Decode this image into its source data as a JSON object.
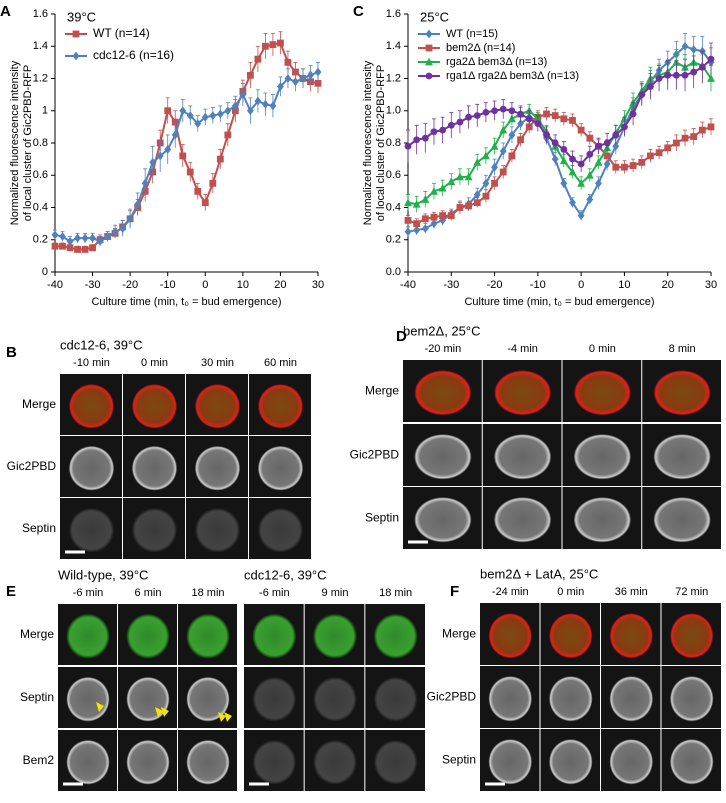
{
  "chart_data": [
    {
      "type": "line",
      "panel_label": "A",
      "annotation": "39°C",
      "ylabel_lines": [
        "Normalized fluorescence intensity",
        "of local cluster of Gic2PBD-RFP"
      ],
      "xlabel": "Culture time (min, t₀ = bud emergence)",
      "x": [
        -40,
        -38,
        -36,
        -34,
        -32,
        -30,
        -28,
        -26,
        -24,
        -22,
        -20,
        -18,
        -16,
        -14,
        -12,
        -10,
        -8,
        -6,
        -4,
        -2,
        0,
        2,
        4,
        6,
        8,
        10,
        12,
        14,
        16,
        18,
        20,
        22,
        24,
        26,
        28,
        30
      ],
      "xlim": [
        -40,
        30
      ],
      "xticks": [
        -40,
        -30,
        -20,
        -10,
        0,
        10,
        20,
        30
      ],
      "ylim": [
        0,
        1.6
      ],
      "yticks": [
        0,
        0.2,
        0.4,
        0.6,
        0.8,
        1,
        1.2,
        1.4,
        1.6
      ],
      "legend": "upper left",
      "series": [
        {
          "name": "WT (n=14)",
          "color": "#c0504d",
          "marker": "square",
          "values": [
            0.16,
            0.16,
            0.15,
            0.14,
            0.14,
            0.15,
            0.2,
            0.22,
            0.24,
            0.28,
            0.33,
            0.4,
            0.5,
            0.62,
            0.8,
            1.0,
            0.93,
            0.72,
            0.62,
            0.5,
            0.43,
            0.55,
            0.7,
            0.85,
            1.0,
            1.12,
            1.22,
            1.32,
            1.4,
            1.41,
            1.42,
            1.3,
            1.24,
            1.2,
            1.18,
            1.17
          ],
          "errors": [
            0.02,
            0.02,
            0.02,
            0.02,
            0.02,
            0.02,
            0.03,
            0.03,
            0.03,
            0.04,
            0.05,
            0.05,
            0.06,
            0.07,
            0.08,
            0.08,
            0.07,
            0.07,
            0.06,
            0.05,
            0.05,
            0.06,
            0.06,
            0.07,
            0.07,
            0.07,
            0.08,
            0.08,
            0.08,
            0.07,
            0.07,
            0.07,
            0.06,
            0.06,
            0.06,
            0.06
          ]
        },
        {
          "name": "cdc12-6 (n=16)",
          "color": "#4f81bd",
          "marker": "diamond",
          "values": [
            0.23,
            0.22,
            0.19,
            0.21,
            0.21,
            0.21,
            0.19,
            0.22,
            0.25,
            0.27,
            0.33,
            0.42,
            0.55,
            0.68,
            0.72,
            0.76,
            0.85,
            1.0,
            0.97,
            0.92,
            0.96,
            0.97,
            0.98,
            1.0,
            1.03,
            1.1,
            1.0,
            1.06,
            1.04,
            1.03,
            1.15,
            1.2,
            1.18,
            1.2,
            1.22,
            1.24
          ],
          "errors": [
            0.03,
            0.03,
            0.03,
            0.03,
            0.03,
            0.03,
            0.03,
            0.03,
            0.04,
            0.05,
            0.06,
            0.07,
            0.09,
            0.1,
            0.1,
            0.09,
            0.08,
            0.07,
            0.06,
            0.05,
            0.05,
            0.05,
            0.05,
            0.05,
            0.06,
            0.07,
            0.08,
            0.07,
            0.07,
            0.07,
            0.06,
            0.06,
            0.06,
            0.06,
            0.06,
            0.06
          ]
        }
      ]
    },
    {
      "type": "line",
      "panel_label": "C",
      "annotation": "25°C",
      "ylabel_lines": [
        "Normalized fluorescence intensity",
        "of local cluster of Gic2PBD-RFP"
      ],
      "xlabel": "Culture time (min, t₀ = bud emergence)",
      "x": [
        -40,
        -38,
        -36,
        -34,
        -32,
        -30,
        -28,
        -26,
        -24,
        -22,
        -20,
        -18,
        -16,
        -14,
        -12,
        -10,
        -8,
        -6,
        -4,
        -2,
        0,
        2,
        4,
        6,
        8,
        10,
        12,
        14,
        16,
        18,
        20,
        22,
        24,
        26,
        28,
        30
      ],
      "xlim": [
        -40,
        30
      ],
      "xticks": [
        -40,
        -30,
        -20,
        -10,
        0,
        10,
        20,
        30
      ],
      "ylim": [
        0,
        1.6
      ],
      "yticks": [
        {
          "value": 0,
          "label": "0.0"
        },
        0.2,
        0.4,
        0.6,
        0.8,
        {
          "value": 1,
          "label": "1.0"
        },
        1.2,
        1.4,
        1.6
      ],
      "legend": "upper left",
      "series": [
        {
          "name": "WT (n=15)",
          "color": "#4f81bd",
          "marker": "diamond",
          "values": [
            0.25,
            0.26,
            0.27,
            0.3,
            0.32,
            0.36,
            0.4,
            0.42,
            0.48,
            0.55,
            0.65,
            0.75,
            0.85,
            0.92,
            0.96,
            0.94,
            0.83,
            0.7,
            0.55,
            0.43,
            0.35,
            0.45,
            0.55,
            0.67,
            0.78,
            0.9,
            1.02,
            1.1,
            1.18,
            1.25,
            1.3,
            1.35,
            1.4,
            1.38,
            1.37,
            1.3
          ],
          "errors": [
            0.03,
            0.03,
            0.03,
            0.03,
            0.03,
            0.03,
            0.04,
            0.04,
            0.04,
            0.05,
            0.05,
            0.05,
            0.05,
            0.04,
            0.04,
            0.04,
            0.04,
            0.04,
            0.03,
            0.03,
            0.03,
            0.03,
            0.04,
            0.04,
            0.05,
            0.05,
            0.06,
            0.06,
            0.07,
            0.07,
            0.07,
            0.08,
            0.08,
            0.08,
            0.09,
            0.09
          ]
        },
        {
          "name": "bem2Δ (n=14)",
          "color": "#c0504d",
          "marker": "square",
          "values": [
            0.32,
            0.3,
            0.33,
            0.34,
            0.35,
            0.35,
            0.4,
            0.41,
            0.43,
            0.47,
            0.55,
            0.62,
            0.72,
            0.82,
            0.9,
            0.96,
            0.98,
            0.97,
            0.95,
            0.94,
            0.88,
            0.83,
            0.78,
            0.72,
            0.65,
            0.65,
            0.66,
            0.68,
            0.72,
            0.74,
            0.77,
            0.8,
            0.83,
            0.84,
            0.88,
            0.9
          ],
          "errors": [
            0.03,
            0.03,
            0.03,
            0.03,
            0.03,
            0.03,
            0.03,
            0.03,
            0.03,
            0.04,
            0.04,
            0.04,
            0.04,
            0.04,
            0.04,
            0.04,
            0.04,
            0.04,
            0.04,
            0.04,
            0.04,
            0.04,
            0.04,
            0.04,
            0.04,
            0.04,
            0.04,
            0.04,
            0.04,
            0.04,
            0.04,
            0.05,
            0.05,
            0.05,
            0.05,
            0.05
          ]
        },
        {
          "name": "rga2Δ bem3Δ (n=13)",
          "color": "#1fb14a",
          "marker": "triangle",
          "values": [
            0.43,
            0.42,
            0.45,
            0.5,
            0.52,
            0.56,
            0.59,
            0.59,
            0.68,
            0.72,
            0.78,
            0.88,
            0.95,
            0.98,
            1.0,
            0.95,
            0.87,
            0.78,
            0.69,
            0.62,
            0.55,
            0.6,
            0.68,
            0.77,
            0.86,
            0.95,
            1.05,
            1.12,
            1.2,
            1.22,
            1.24,
            1.3,
            1.27,
            1.3,
            1.28,
            1.2
          ],
          "errors": [
            0.05,
            0.05,
            0.05,
            0.05,
            0.05,
            0.05,
            0.05,
            0.05,
            0.05,
            0.05,
            0.05,
            0.05,
            0.04,
            0.04,
            0.04,
            0.04,
            0.04,
            0.04,
            0.04,
            0.04,
            0.04,
            0.04,
            0.04,
            0.05,
            0.05,
            0.05,
            0.06,
            0.06,
            0.07,
            0.07,
            0.07,
            0.08,
            0.08,
            0.08,
            0.08,
            0.08
          ]
        },
        {
          "name": "rga1Δ rga2Δ bem3Δ (n=13)",
          "color": "#7030a0",
          "marker": "circle",
          "values": [
            0.78,
            0.82,
            0.83,
            0.87,
            0.88,
            0.91,
            0.93,
            0.96,
            0.97,
            0.99,
            1.0,
            1.01,
            1.0,
            0.98,
            0.95,
            0.92,
            0.85,
            0.8,
            0.76,
            0.7,
            0.67,
            0.73,
            0.78,
            0.8,
            0.85,
            0.9,
            0.98,
            1.1,
            1.15,
            1.2,
            1.22,
            1.22,
            1.22,
            1.24,
            1.27,
            1.32
          ],
          "errors": [
            0.1,
            0.09,
            0.09,
            0.08,
            0.08,
            0.08,
            0.07,
            0.07,
            0.07,
            0.06,
            0.06,
            0.06,
            0.05,
            0.05,
            0.05,
            0.05,
            0.05,
            0.05,
            0.05,
            0.05,
            0.05,
            0.05,
            0.05,
            0.06,
            0.06,
            0.06,
            0.07,
            0.07,
            0.08,
            0.08,
            0.09,
            0.09,
            0.1,
            0.1,
            0.1,
            0.1
          ]
        }
      ]
    }
  ],
  "panel_b": {
    "label": "B",
    "groups": [
      {
        "title": "cdc12-6, 39°C",
        "times": [
          "-10 min",
          "0 min",
          "30 min",
          "60 min"
        ]
      }
    ],
    "rows": [
      "Merge",
      "Gic2PBD",
      "Septin"
    ],
    "row_colors": [
      "#000000",
      "#e8231a",
      "#1fa12f"
    ]
  },
  "panel_d": {
    "label": "D",
    "groups": [
      {
        "title": "bem2Δ, 25°C",
        "times": [
          "-20 min",
          "-4 min",
          "0 min",
          "8 min"
        ]
      }
    ],
    "rows": [
      "Merge",
      "Gic2PBD",
      "Septin"
    ],
    "row_colors": [
      "#000000",
      "#e8231a",
      "#1fa12f"
    ]
  },
  "panel_e": {
    "label": "E",
    "groups": [
      {
        "title": "Wild-type, 39°C",
        "times": [
          "-6 min",
          "6 min",
          "18 min"
        ]
      },
      {
        "title": "cdc12-6, 39°C",
        "times": [
          "-6 min",
          "9 min",
          "18 min"
        ]
      }
    ],
    "rows": [
      "Merge",
      "Septin",
      "Bem2"
    ],
    "row_colors": [
      "#000000",
      "#e8231a",
      "#1fa12f"
    ]
  },
  "panel_f": {
    "label": "F",
    "groups": [
      {
        "title": "bem2Δ + LatA, 25°C",
        "times": [
          "-24 min",
          "0 min",
          "36 min",
          "72 min"
        ]
      }
    ],
    "rows": [
      "Merge",
      "Gic2PBD",
      "Septin"
    ],
    "row_colors": [
      "#000000",
      "#e8231a",
      "#1fa12f"
    ]
  }
}
